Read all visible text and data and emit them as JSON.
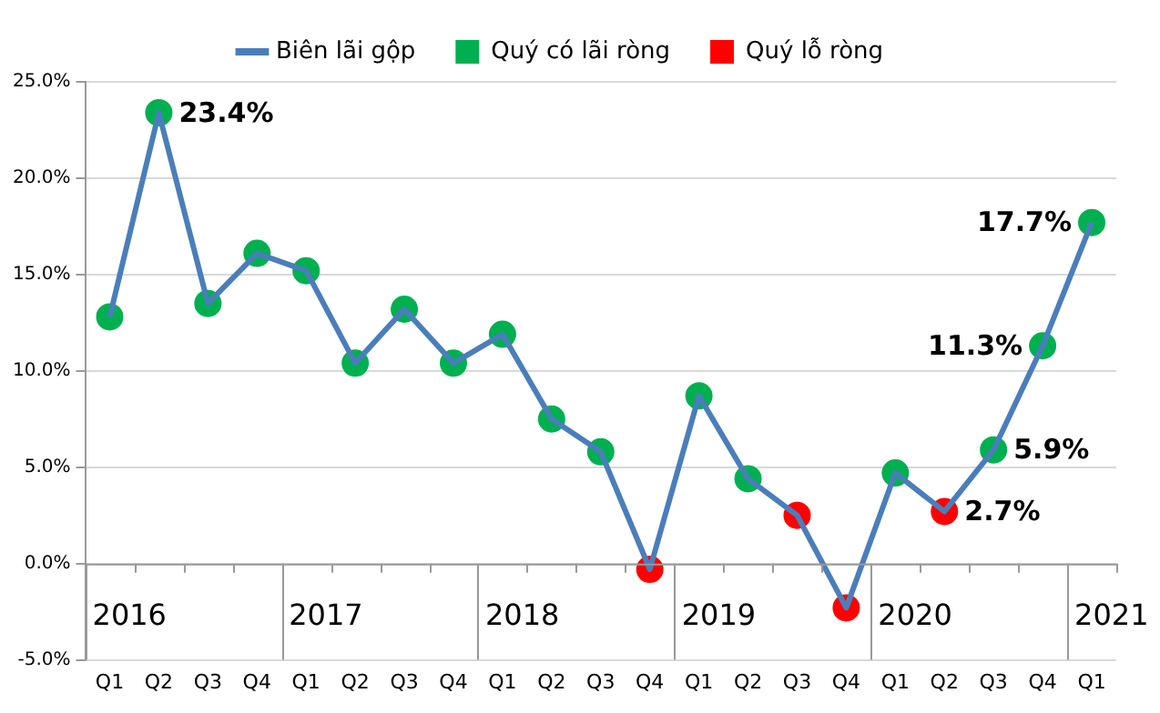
{
  "chart_data": {
    "type": "line",
    "categories": [
      "Q1",
      "Q2",
      "Q3",
      "Q4",
      "Q1",
      "Q2",
      "Q3",
      "Q4",
      "Q1",
      "Q2",
      "Q3",
      "Q4",
      "Q1",
      "Q2",
      "Q3",
      "Q4",
      "Q1",
      "Q2",
      "Q3",
      "Q4",
      "Q1"
    ],
    "series": [
      {
        "name": "Biên lãi gộp",
        "color": "#4a7ebb",
        "marker": "none",
        "values": [
          12.8,
          23.4,
          13.5,
          16.1,
          15.2,
          10.4,
          13.2,
          10.4,
          11.9,
          7.5,
          5.8,
          -0.3,
          8.7,
          4.4,
          2.5,
          -2.3,
          4.7,
          2.7,
          5.9,
          11.3,
          17.7
        ]
      },
      {
        "name": "Quý có lãi ròng",
        "type": "scatter",
        "color": "#00b050",
        "marker": "circle",
        "values": [
          12.8,
          23.4,
          13.5,
          16.1,
          15.2,
          10.4,
          13.2,
          10.4,
          11.9,
          7.5,
          5.8,
          null,
          8.7,
          4.4,
          null,
          null,
          4.7,
          null,
          5.9,
          11.3,
          17.7
        ],
        "value_labels": [
          null,
          "23.4%",
          null,
          null,
          null,
          null,
          null,
          null,
          null,
          null,
          null,
          null,
          null,
          null,
          null,
          null,
          null,
          null,
          "5.9%",
          "11.3%",
          "17.7%"
        ]
      },
      {
        "name": "Quý lỗ ròng",
        "type": "scatter",
        "color": "#ff0000",
        "marker": "circle",
        "values": [
          null,
          null,
          null,
          null,
          null,
          null,
          null,
          null,
          null,
          null,
          null,
          -0.3,
          null,
          null,
          2.5,
          -2.3,
          null,
          2.7,
          null,
          null,
          null
        ],
        "value_labels": [
          null,
          null,
          null,
          null,
          null,
          null,
          null,
          null,
          null,
          null,
          null,
          null,
          null,
          null,
          null,
          null,
          null,
          "2.7%",
          null,
          null,
          null
        ]
      }
    ],
    "ylim": [
      -5,
      25
    ],
    "yticks": [
      {
        "value": -5,
        "label": "-5.0%"
      },
      {
        "value": 0,
        "label": "0.0%"
      },
      {
        "value": 5,
        "label": "5.0%"
      },
      {
        "value": 10,
        "label": "10.0%"
      },
      {
        "value": 15,
        "label": "15.0%"
      },
      {
        "value": 20,
        "label": "20.0%"
      },
      {
        "value": 25,
        "label": "25.0%"
      }
    ],
    "grid": "y",
    "legend": "top",
    "line_style": "solid",
    "annotations": [
      "2016",
      "2017",
      "2018",
      "2019",
      "2020",
      "2021"
    ]
  }
}
